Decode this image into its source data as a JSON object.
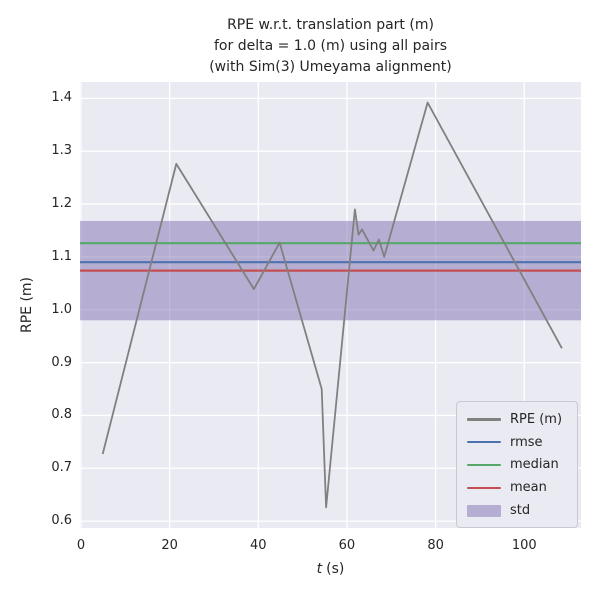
{
  "figure": {
    "background": "#ffffff"
  },
  "chart_data": {
    "type": "line",
    "title": "RPE w.r.t. translation part (m)\nfor delta = 1.0 (m) using all pairs\n(with Sim(3) Umeyama alignment)",
    "title_lines": [
      "RPE w.r.t. translation part (m)",
      "for delta = 1.0 (m) using all pairs",
      "(with Sim(3) Umeyama alignment)"
    ],
    "xlabel": "t (s)",
    "xlabel_parts": {
      "var": "t",
      "unit": "(s)"
    },
    "ylabel": "RPE (m)",
    "xlim": [
      -0.22,
      112.8
    ],
    "ylim": [
      0.587,
      1.431
    ],
    "xticks": [
      0,
      20,
      40,
      60,
      80,
      100
    ],
    "yticks": [
      0.6,
      0.7,
      0.8,
      0.9,
      1.0,
      1.1,
      1.2,
      1.3,
      1.4
    ],
    "grid": true,
    "series": [
      {
        "name": "RPE (m)",
        "color": "#808080",
        "x": [
          4.9,
          21.5,
          39.0,
          44.8,
          54.3,
          55.3,
          61.8,
          62.6,
          63.4,
          66.0,
          67.2,
          68.4,
          78.2,
          108.5
        ],
        "y": [
          0.727,
          1.276,
          1.039,
          1.127,
          0.85,
          0.626,
          1.19,
          1.142,
          1.152,
          1.112,
          1.133,
          1.1,
          1.392,
          0.927
        ]
      }
    ],
    "stat_lines": [
      {
        "name": "rmse",
        "color": "#4C72B0",
        "value": 1.09
      },
      {
        "name": "median",
        "color": "#55A868",
        "value": 1.126
      },
      {
        "name": "mean",
        "color": "#C44E52",
        "value": 1.074
      }
    ],
    "std_band": {
      "name": "std",
      "color": "#8172B2",
      "alpha": 0.5,
      "low": 0.98,
      "high": 1.168
    },
    "legend": {
      "position": "lower right",
      "entries": [
        {
          "label": "RPE (m)",
          "color": "#808080",
          "type": "line"
        },
        {
          "label": "rmse",
          "color": "#4C72B0",
          "type": "line"
        },
        {
          "label": "median",
          "color": "#55A868",
          "type": "line"
        },
        {
          "label": "mean",
          "color": "#C44E52",
          "type": "line"
        },
        {
          "label": "std",
          "color": "#8172B2",
          "type": "patch"
        }
      ]
    }
  },
  "colors": {
    "axes_bg": "#EAEAF2",
    "grid": "#FFFFFF",
    "text": "#262626",
    "legend_bg": "#EAEAF2",
    "legend_border": "#C9C9D4"
  }
}
